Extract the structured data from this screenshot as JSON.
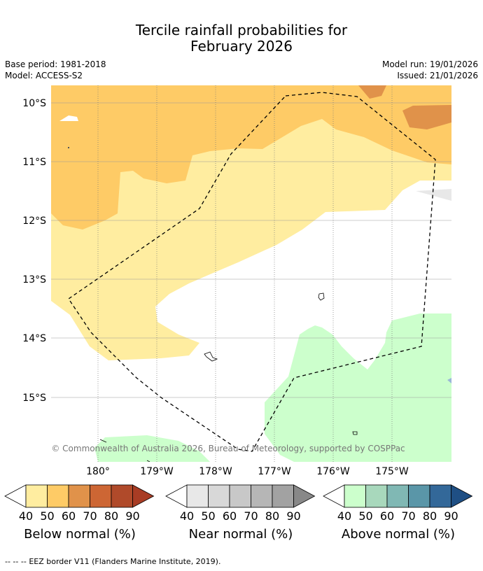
{
  "title": {
    "line1": "Tercile rainfall probabilities for",
    "line2": "February 2026"
  },
  "meta": {
    "base_period": "Base period: 1981-2018",
    "model": "Model: ACCESS-S2",
    "model_run": "Model run: 19/01/2026",
    "issued": "Issued: 21/01/2026"
  },
  "map": {
    "lat_labels": [
      "10°S",
      "11°S",
      "12°S",
      "13°S",
      "14°S",
      "15°S"
    ],
    "lon_labels": [
      "180°",
      "179°W",
      "178°W",
      "177°W",
      "176°W",
      "175°W"
    ],
    "copyright": "© Commonwealth of Australia 2026, Bureau of Meteorology, supported by COSPPac",
    "colors": {
      "below_40": "#ffeda0",
      "below_50": "#fecb66",
      "below_60": "#e0924a",
      "ocean_white": "#ffffff",
      "above_40": "#ccffcc",
      "near_40": "#e8e8e8",
      "above_80": "#9ab7d8"
    }
  },
  "legends": [
    {
      "name": "below",
      "label": "Below normal (%)",
      "ticks": [
        "40",
        "50",
        "60",
        "70",
        "80",
        "90"
      ],
      "colors": [
        "#ffeda0",
        "#fecb66",
        "#e0924a",
        "#cd6634",
        "#b04a2a",
        "#a83c24"
      ]
    },
    {
      "name": "near",
      "label": "Near normal (%)",
      "ticks": [
        "40",
        "50",
        "60",
        "70",
        "80",
        "90"
      ],
      "colors": [
        "#e8e8e8",
        "#d8d8d8",
        "#c8c8c8",
        "#b6b6b6",
        "#a2a2a2",
        "#888888"
      ]
    },
    {
      "name": "above",
      "label": "Above normal (%)",
      "ticks": [
        "40",
        "50",
        "60",
        "70",
        "80",
        "90"
      ],
      "colors": [
        "#ccffcc",
        "#a8d8bc",
        "#80b8b4",
        "#5a96a8",
        "#336899",
        "#1f4f84"
      ]
    }
  ],
  "footnote": {
    "line_symbol": "--  --  --",
    "text": "EEZ border V11 (Flanders Marine Institute, 2019)."
  }
}
